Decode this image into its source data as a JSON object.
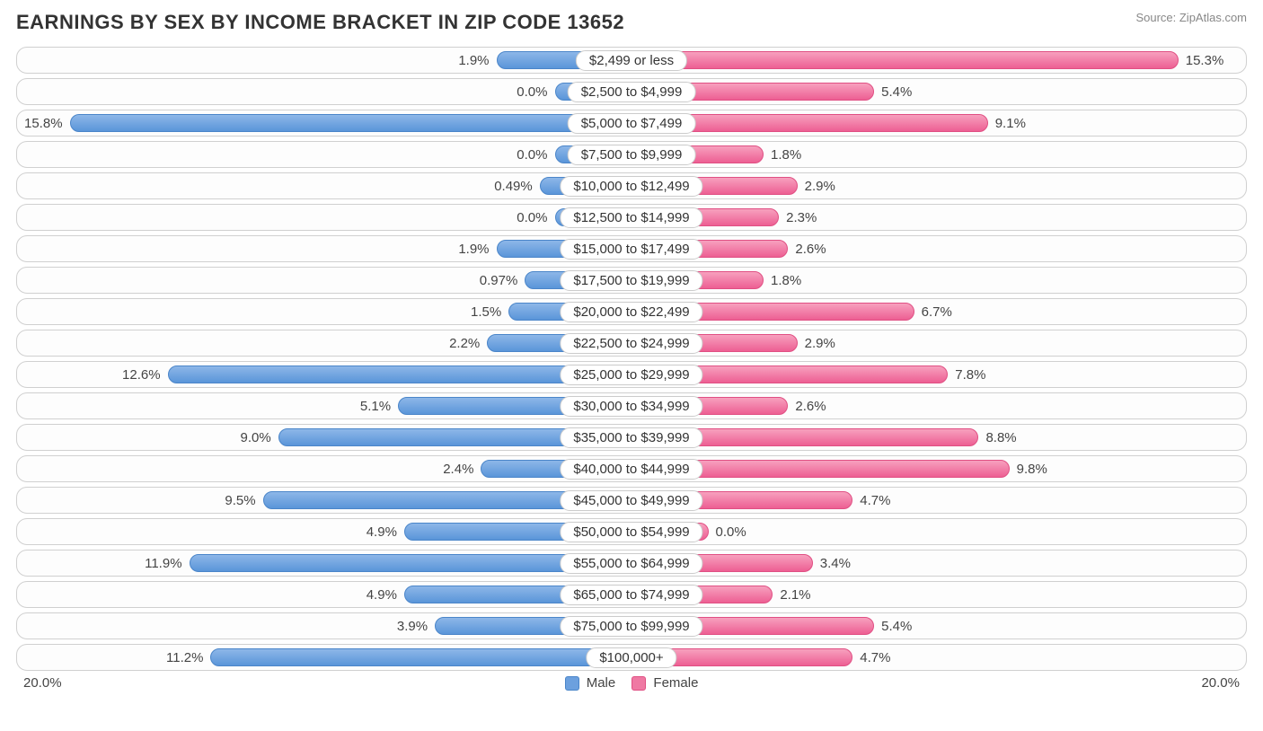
{
  "title": "EARNINGS BY SEX BY INCOME BRACKET IN ZIP CODE 13652",
  "source": "Source: ZipAtlas.com",
  "axis_max_pct": 20.0,
  "axis_label_left": "20.0%",
  "axis_label_right": "20.0%",
  "legend": {
    "male": "Male",
    "female": "Female"
  },
  "colors": {
    "male_bar": "#6ca0de",
    "female_bar": "#ef79a3",
    "row_border": "#d0d0d0",
    "text": "#444444",
    "background": "#ffffff"
  },
  "bar_min_extra_pct": 2.5,
  "rows": [
    {
      "category": "$2,499 or less",
      "male": 1.9,
      "male_label": "1.9%",
      "female": 15.3,
      "female_label": "15.3%"
    },
    {
      "category": "$2,500 to $4,999",
      "male": 0.0,
      "male_label": "0.0%",
      "female": 5.4,
      "female_label": "5.4%"
    },
    {
      "category": "$5,000 to $7,499",
      "male": 15.8,
      "male_label": "15.8%",
      "female": 9.1,
      "female_label": "9.1%"
    },
    {
      "category": "$7,500 to $9,999",
      "male": 0.0,
      "male_label": "0.0%",
      "female": 1.8,
      "female_label": "1.8%"
    },
    {
      "category": "$10,000 to $12,499",
      "male": 0.49,
      "male_label": "0.49%",
      "female": 2.9,
      "female_label": "2.9%"
    },
    {
      "category": "$12,500 to $14,999",
      "male": 0.0,
      "male_label": "0.0%",
      "female": 2.3,
      "female_label": "2.3%"
    },
    {
      "category": "$15,000 to $17,499",
      "male": 1.9,
      "male_label": "1.9%",
      "female": 2.6,
      "female_label": "2.6%"
    },
    {
      "category": "$17,500 to $19,999",
      "male": 0.97,
      "male_label": "0.97%",
      "female": 1.8,
      "female_label": "1.8%"
    },
    {
      "category": "$20,000 to $22,499",
      "male": 1.5,
      "male_label": "1.5%",
      "female": 6.7,
      "female_label": "6.7%"
    },
    {
      "category": "$22,500 to $24,999",
      "male": 2.2,
      "male_label": "2.2%",
      "female": 2.9,
      "female_label": "2.9%"
    },
    {
      "category": "$25,000 to $29,999",
      "male": 12.6,
      "male_label": "12.6%",
      "female": 7.8,
      "female_label": "7.8%"
    },
    {
      "category": "$30,000 to $34,999",
      "male": 5.1,
      "male_label": "5.1%",
      "female": 2.6,
      "female_label": "2.6%"
    },
    {
      "category": "$35,000 to $39,999",
      "male": 9.0,
      "male_label": "9.0%",
      "female": 8.8,
      "female_label": "8.8%"
    },
    {
      "category": "$40,000 to $44,999",
      "male": 2.4,
      "male_label": "2.4%",
      "female": 9.8,
      "female_label": "9.8%"
    },
    {
      "category": "$45,000 to $49,999",
      "male": 9.5,
      "male_label": "9.5%",
      "female": 4.7,
      "female_label": "4.7%"
    },
    {
      "category": "$50,000 to $54,999",
      "male": 4.9,
      "male_label": "4.9%",
      "female": 0.0,
      "female_label": "0.0%"
    },
    {
      "category": "$55,000 to $64,999",
      "male": 11.9,
      "male_label": "11.9%",
      "female": 3.4,
      "female_label": "3.4%"
    },
    {
      "category": "$65,000 to $74,999",
      "male": 4.9,
      "male_label": "4.9%",
      "female": 2.1,
      "female_label": "2.1%"
    },
    {
      "category": "$75,000 to $99,999",
      "male": 3.9,
      "male_label": "3.9%",
      "female": 5.4,
      "female_label": "5.4%"
    },
    {
      "category": "$100,000+",
      "male": 11.2,
      "male_label": "11.2%",
      "female": 4.7,
      "female_label": "4.7%"
    }
  ]
}
